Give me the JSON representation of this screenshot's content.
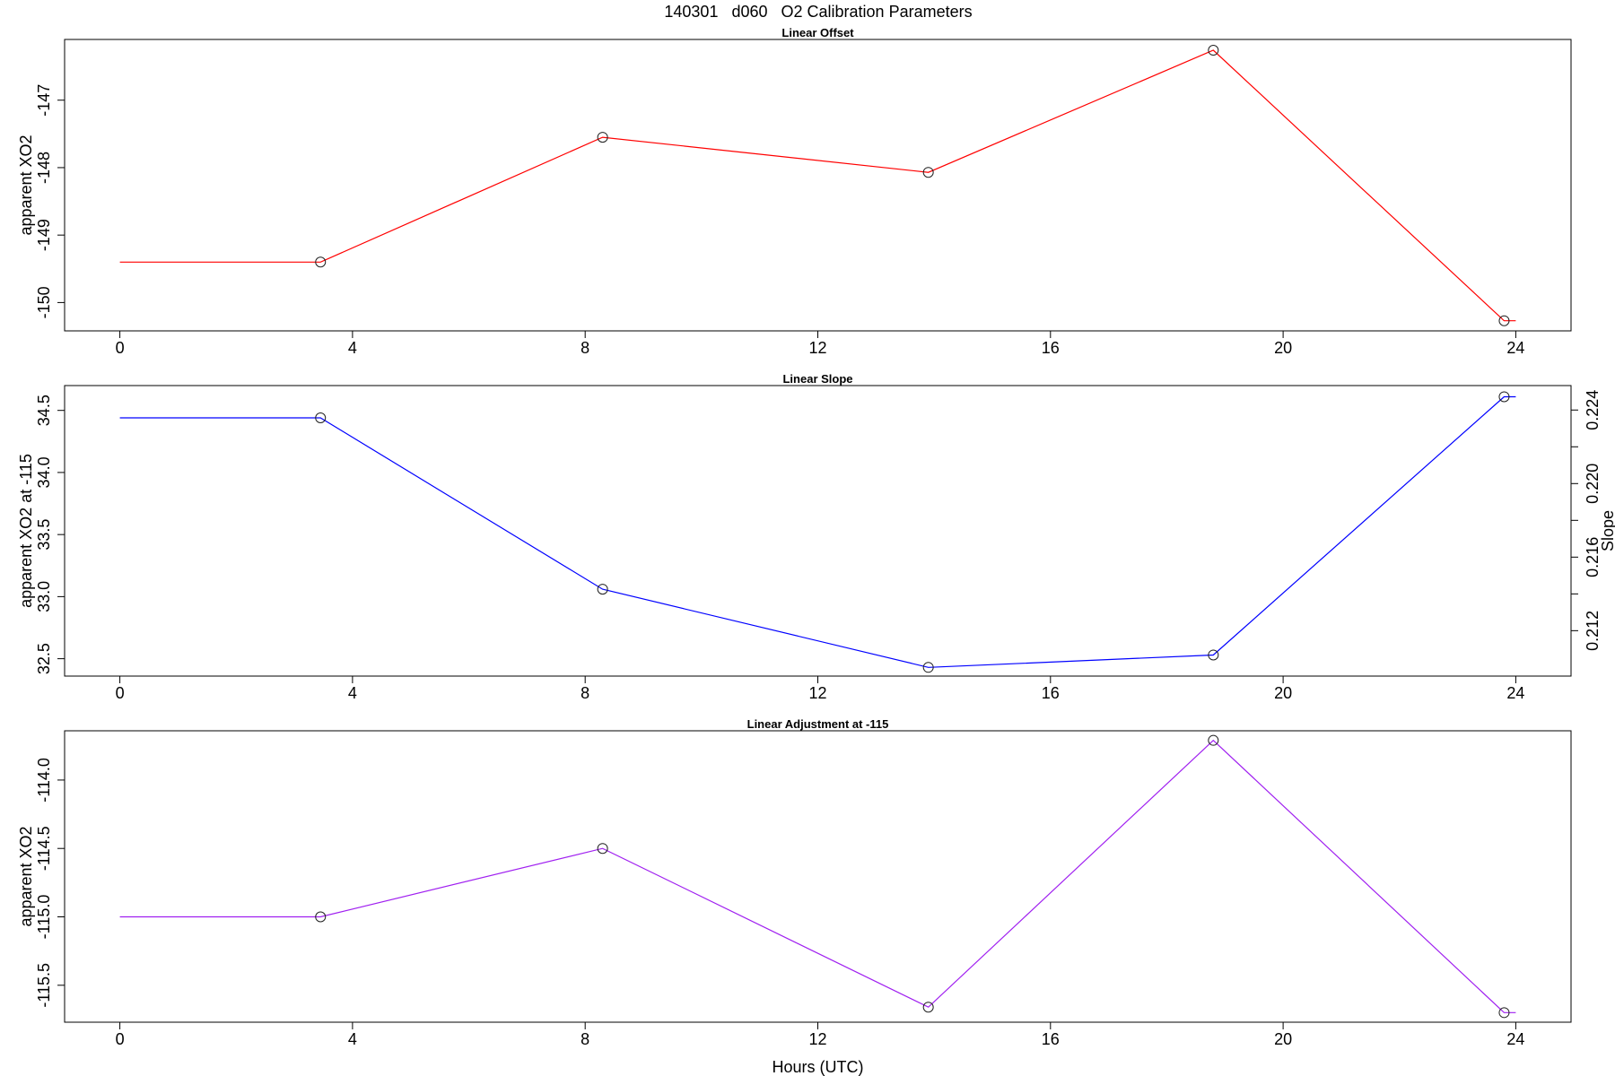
{
  "figure": {
    "title": "140301   d060   O2 Calibration Parameters",
    "xlabel": "Hours (UTC)"
  },
  "chart_data": [
    {
      "type": "line",
      "title": "Linear Offset",
      "xlabel": "",
      "ylabel": "apparent XO2",
      "color": "#ff0000",
      "x": [
        3.45,
        8.3,
        13.9,
        18.8,
        23.8
      ],
      "values": [
        -149.4,
        -147.55,
        -148.07,
        -146.26,
        -150.27
      ],
      "extend": {
        "start": 0,
        "end": 24
      },
      "xlim": [
        -0.95,
        24.95
      ],
      "ylim": [
        -150.42,
        -146.1
      ],
      "xticks": [
        0,
        4,
        8,
        12,
        16,
        20,
        24
      ],
      "yticks": [
        -150,
        -149,
        -148,
        -147
      ],
      "grid": false
    },
    {
      "type": "line",
      "title": "Linear Slope",
      "xlabel": "",
      "ylabel": "apparent XO2 at -115",
      "y2label": "Slope",
      "color": "#0000ff",
      "x": [
        3.45,
        8.3,
        13.9,
        18.8,
        23.8
      ],
      "values": [
        34.44,
        33.06,
        32.43,
        32.53,
        34.61
      ],
      "extend": {
        "start": 0,
        "end": 24
      },
      "xlim": [
        -0.95,
        24.95
      ],
      "ylim": [
        32.36,
        34.7
      ],
      "xticks": [
        0,
        4,
        8,
        12,
        16,
        20,
        24
      ],
      "yticks": [
        32.5,
        33.0,
        33.5,
        34.0,
        34.5
      ],
      "y2lim": [
        0.20953,
        0.22533
      ],
      "y2ticks": [
        0.212,
        0.216,
        0.22,
        0.224
      ],
      "y2tick_labels": [
        "0.212",
        "0.216",
        "0.220",
        "0.224"
      ],
      "grid": false
    },
    {
      "type": "line",
      "title": "Linear Adjustment at -115",
      "xlabel": "Hours (UTC)",
      "ylabel": "apparent XO2",
      "color": "#a020f0",
      "x": [
        3.45,
        8.3,
        13.9,
        18.8,
        23.8
      ],
      "values": [
        -115.0,
        -114.5,
        -115.66,
        -113.71,
        -115.7
      ],
      "extend": {
        "start": 0,
        "end": 24
      },
      "xlim": [
        -0.95,
        24.95
      ],
      "ylim": [
        -115.77,
        -113.64
      ],
      "xticks": [
        0,
        4,
        8,
        12,
        16,
        20,
        24
      ],
      "yticks": [
        -115.5,
        -115.0,
        -114.5,
        -114.0
      ],
      "grid": false
    }
  ]
}
